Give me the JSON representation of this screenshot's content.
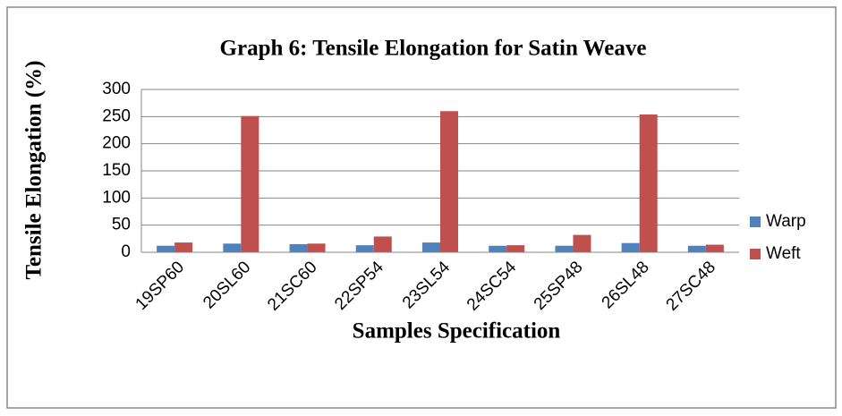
{
  "chart_data": {
    "type": "bar",
    "title": "Graph 6: Tensile Elongation for Satin Weave",
    "x_label": "Samples Specification",
    "y_label": "Tensile Elongation (%)",
    "categories": [
      "19SP60",
      "20SL60",
      "21SC60",
      "22SP54",
      "23SL54",
      "24SC54",
      "25SP48",
      "26SL48",
      "27SC48"
    ],
    "series": [
      {
        "name": "Warp",
        "color": "#4f81bd",
        "values": [
          12,
          16,
          15,
          13,
          18,
          12,
          12,
          17,
          12
        ]
      },
      {
        "name": "Weft",
        "color": "#c0504d",
        "values": [
          18,
          251,
          16,
          29,
          260,
          13,
          32,
          254,
          14
        ]
      }
    ],
    "ylim": [
      0,
      300
    ],
    "yticks": [
      0,
      50,
      100,
      150,
      200,
      250,
      300
    ],
    "grid": true,
    "legend": "right"
  }
}
